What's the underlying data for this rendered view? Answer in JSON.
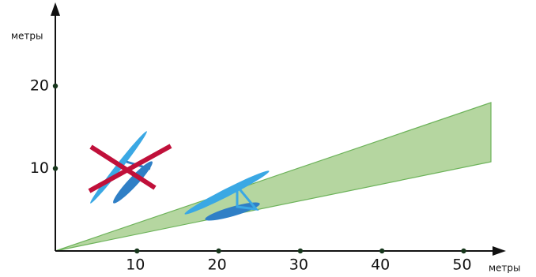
{
  "axes": {
    "x": {
      "label": "метры",
      "ticks": [
        10,
        20,
        30,
        40,
        50
      ]
    },
    "y": {
      "label": "метры",
      "ticks": [
        10,
        20
      ]
    }
  }
}
